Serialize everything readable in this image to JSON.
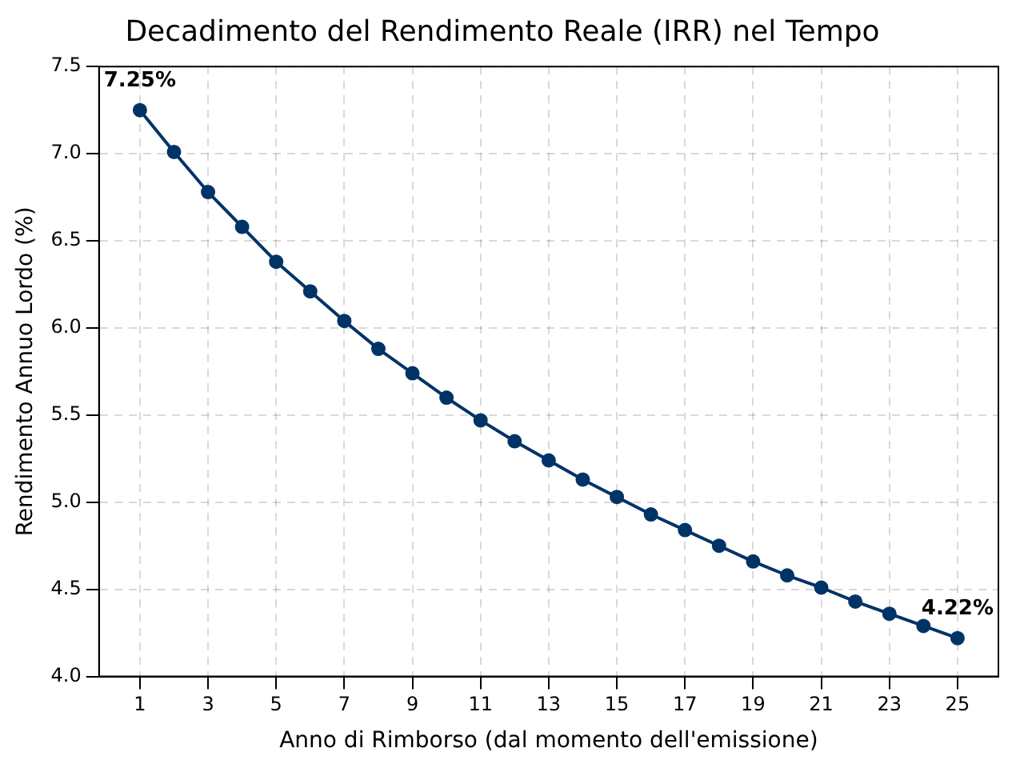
{
  "chart_data": {
    "type": "line",
    "title": "Decadimento del Rendimento Reale (IRR) nel Tempo",
    "xlabel": "Anno di Rimborso (dal momento dell'emissione)",
    "ylabel": "Rendimento Annuo Lordo (%)",
    "x": [
      1,
      2,
      3,
      4,
      5,
      6,
      7,
      8,
      9,
      10,
      11,
      12,
      13,
      14,
      15,
      16,
      17,
      18,
      19,
      20,
      21,
      22,
      23,
      24,
      25
    ],
    "series": [
      {
        "color": "#003366",
        "values": [
          7.25,
          7.01,
          6.78,
          6.58,
          6.38,
          6.21,
          6.04,
          5.88,
          5.74,
          5.6,
          5.47,
          5.35,
          5.24,
          5.13,
          5.03,
          4.93,
          4.84,
          4.75,
          4.66,
          4.58,
          4.51,
          4.43,
          4.36,
          4.29,
          4.22
        ]
      }
    ],
    "xlim": [
      -0.2,
      26.2
    ],
    "xticks": [
      1,
      3,
      5,
      7,
      9,
      11,
      13,
      15,
      17,
      19,
      21,
      23,
      25
    ],
    "ylim": [
      4.0,
      7.5
    ],
    "yticks": [
      {
        "value": 4.0,
        "label": "4.0"
      },
      {
        "value": 4.5,
        "label": "4.5"
      },
      {
        "value": 5.0,
        "label": "5.0"
      },
      {
        "value": 5.5,
        "label": "5.5"
      },
      {
        "value": 6.0,
        "label": "6.0"
      },
      {
        "value": 6.5,
        "label": "6.5"
      },
      {
        "value": 7.0,
        "label": "7.0"
      },
      {
        "value": 7.5,
        "label": "7.5"
      }
    ],
    "annotations": [
      {
        "text": "7.25%",
        "x": 1,
        "y": 7.25
      },
      {
        "text": "4.22%",
        "x": 25,
        "y": 4.22
      }
    ],
    "grid": true,
    "legend": false,
    "marker": "circle",
    "line_style": "solid"
  }
}
